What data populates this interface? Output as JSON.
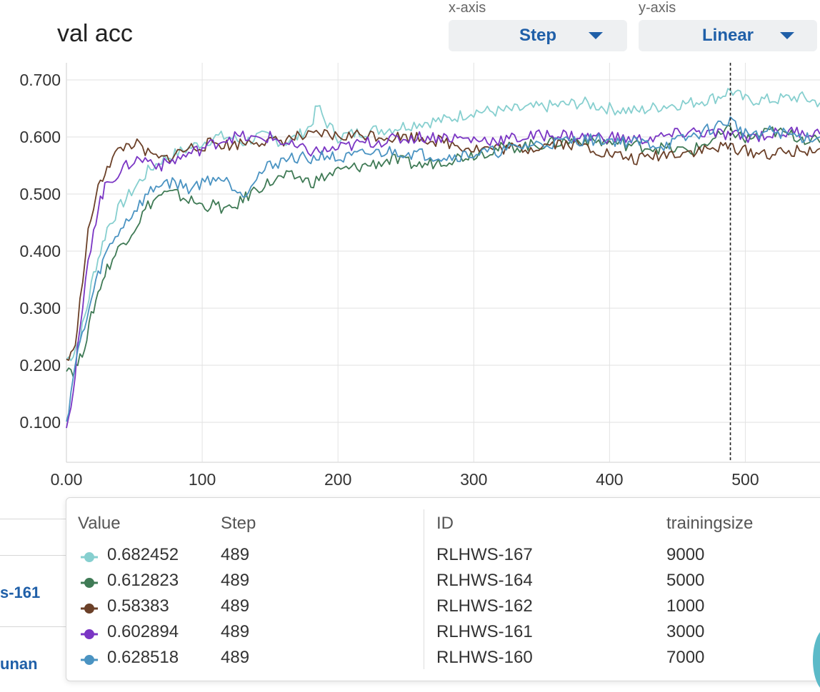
{
  "header": {
    "title": "val acc",
    "x_axis_label": "x-axis",
    "x_axis_value": "Step",
    "y_axis_label": "y-axis",
    "y_axis_value": "Linear"
  },
  "left_panel": {
    "link1": "s-161",
    "link2": "unan"
  },
  "tooltip": {
    "headers": {
      "value": "Value",
      "step": "Step",
      "id": "ID",
      "trainingsize": "trainingsize"
    },
    "rows": [
      {
        "value": "0.682452",
        "step": "489",
        "id": "RLHWS-167",
        "trainingsize": "9000",
        "color": "#86cfcf"
      },
      {
        "value": "0.612823",
        "step": "489",
        "id": "RLHWS-164",
        "trainingsize": "5000",
        "color": "#3f7a55"
      },
      {
        "value": "0.58383",
        "step": "489",
        "id": "RLHWS-162",
        "trainingsize": "1000",
        "color": "#6b4028"
      },
      {
        "value": "0.602894",
        "step": "489",
        "id": "RLHWS-161",
        "trainingsize": "3000",
        "color": "#7a35c4"
      },
      {
        "value": "0.628518",
        "step": "489",
        "id": "RLHWS-160",
        "trainingsize": "7000",
        "color": "#4a93c2"
      }
    ]
  },
  "chart_data": {
    "type": "line",
    "title": "val acc",
    "xlabel": "",
    "ylabel": "",
    "xlim": [
      0,
      555
    ],
    "ylim": [
      0.03,
      0.73
    ],
    "x_ticks": [
      0,
      100,
      200,
      300,
      400,
      500
    ],
    "x_tick_labels": [
      "0.00",
      "100",
      "200",
      "300",
      "400",
      "500"
    ],
    "y_ticks": [
      0.1,
      0.2,
      0.3,
      0.4,
      0.5,
      0.6,
      0.7
    ],
    "y_tick_labels": [
      "0.100",
      "0.200",
      "0.300",
      "0.400",
      "0.500",
      "0.600",
      "0.700"
    ],
    "grid": true,
    "hover_step": 489,
    "series": [
      {
        "name": "RLHWS-167",
        "color": "#86cfcf",
        "x": [
          0,
          5,
          10,
          15,
          20,
          25,
          30,
          40,
          50,
          60,
          70,
          80,
          90,
          100,
          110,
          120,
          130,
          140,
          150,
          160,
          170,
          180,
          185,
          190,
          200,
          220,
          240,
          260,
          280,
          300,
          320,
          340,
          360,
          380,
          400,
          420,
          440,
          460,
          480,
          489,
          500,
          520,
          540,
          555
        ],
        "y": [
          0.21,
          0.22,
          0.25,
          0.3,
          0.36,
          0.4,
          0.44,
          0.48,
          0.51,
          0.54,
          0.56,
          0.57,
          0.58,
          0.59,
          0.6,
          0.6,
          0.59,
          0.6,
          0.6,
          0.59,
          0.6,
          0.62,
          0.655,
          0.63,
          0.6,
          0.61,
          0.615,
          0.625,
          0.63,
          0.645,
          0.645,
          0.65,
          0.655,
          0.66,
          0.65,
          0.645,
          0.655,
          0.66,
          0.67,
          0.682,
          0.665,
          0.665,
          0.67,
          0.66
        ]
      },
      {
        "name": "RLHWS-164",
        "color": "#3f7a55",
        "x": [
          0,
          5,
          10,
          15,
          20,
          25,
          30,
          40,
          50,
          60,
          70,
          80,
          90,
          100,
          110,
          120,
          130,
          140,
          150,
          160,
          170,
          180,
          190,
          200,
          220,
          240,
          260,
          280,
          300,
          320,
          340,
          360,
          380,
          400,
          420,
          440,
          460,
          480,
          489,
          500,
          520,
          540,
          555
        ],
        "y": [
          0.2,
          0.19,
          0.21,
          0.25,
          0.3,
          0.34,
          0.37,
          0.41,
          0.44,
          0.48,
          0.5,
          0.5,
          0.49,
          0.48,
          0.48,
          0.47,
          0.49,
          0.51,
          0.52,
          0.53,
          0.53,
          0.52,
          0.53,
          0.54,
          0.55,
          0.56,
          0.55,
          0.56,
          0.57,
          0.58,
          0.585,
          0.59,
          0.595,
          0.59,
          0.585,
          0.58,
          0.575,
          0.6,
          0.613,
          0.595,
          0.61,
          0.6,
          0.59
        ]
      },
      {
        "name": "RLHWS-162",
        "color": "#6b4028",
        "x": [
          0,
          5,
          8,
          12,
          16,
          20,
          25,
          30,
          40,
          50,
          60,
          70,
          80,
          90,
          100,
          110,
          120,
          130,
          140,
          150,
          160,
          170,
          180,
          190,
          200,
          220,
          240,
          260,
          280,
          300,
          320,
          340,
          360,
          380,
          400,
          420,
          440,
          460,
          480,
          489,
          500,
          520,
          540,
          555
        ],
        "y": [
          0.21,
          0.22,
          0.27,
          0.35,
          0.43,
          0.48,
          0.52,
          0.55,
          0.58,
          0.59,
          0.57,
          0.56,
          0.57,
          0.58,
          0.585,
          0.59,
          0.585,
          0.59,
          0.595,
          0.59,
          0.595,
          0.6,
          0.6,
          0.605,
          0.6,
          0.605,
          0.6,
          0.6,
          0.59,
          0.58,
          0.58,
          0.58,
          0.59,
          0.585,
          0.57,
          0.56,
          0.57,
          0.575,
          0.58,
          0.584,
          0.575,
          0.57,
          0.575,
          0.58
        ]
      },
      {
        "name": "RLHWS-161",
        "color": "#7a35c4",
        "x": [
          0,
          5,
          8,
          12,
          16,
          20,
          25,
          30,
          40,
          50,
          60,
          70,
          80,
          90,
          100,
          110,
          120,
          130,
          140,
          150,
          160,
          170,
          180,
          190,
          200,
          220,
          240,
          260,
          280,
          300,
          320,
          340,
          360,
          380,
          400,
          420,
          440,
          460,
          480,
          489,
          500,
          520,
          540,
          555
        ],
        "y": [
          0.1,
          0.15,
          0.22,
          0.3,
          0.38,
          0.44,
          0.49,
          0.52,
          0.54,
          0.56,
          0.56,
          0.55,
          0.56,
          0.57,
          0.58,
          0.59,
          0.6,
          0.6,
          0.595,
          0.6,
          0.59,
          0.58,
          0.575,
          0.575,
          0.58,
          0.59,
          0.595,
          0.6,
          0.6,
          0.595,
          0.595,
          0.6,
          0.605,
          0.6,
          0.6,
          0.595,
          0.6,
          0.61,
          0.605,
          0.603,
          0.6,
          0.605,
          0.61,
          0.605
        ]
      },
      {
        "name": "RLHWS-160",
        "color": "#4a93c2",
        "x": [
          0,
          5,
          10,
          15,
          20,
          25,
          30,
          40,
          50,
          60,
          70,
          80,
          90,
          100,
          110,
          120,
          130,
          140,
          150,
          160,
          170,
          180,
          190,
          200,
          220,
          240,
          260,
          280,
          300,
          320,
          340,
          360,
          380,
          400,
          420,
          440,
          460,
          480,
          489,
          500,
          520,
          540,
          555
        ],
        "y": [
          0.1,
          0.18,
          0.24,
          0.28,
          0.33,
          0.37,
          0.4,
          0.44,
          0.47,
          0.5,
          0.52,
          0.52,
          0.51,
          0.52,
          0.53,
          0.52,
          0.5,
          0.53,
          0.55,
          0.56,
          0.565,
          0.56,
          0.57,
          0.56,
          0.57,
          0.575,
          0.57,
          0.565,
          0.57,
          0.575,
          0.585,
          0.59,
          0.595,
          0.595,
          0.59,
          0.585,
          0.6,
          0.62,
          0.629,
          0.605,
          0.61,
          0.6,
          0.6
        ]
      }
    ]
  }
}
